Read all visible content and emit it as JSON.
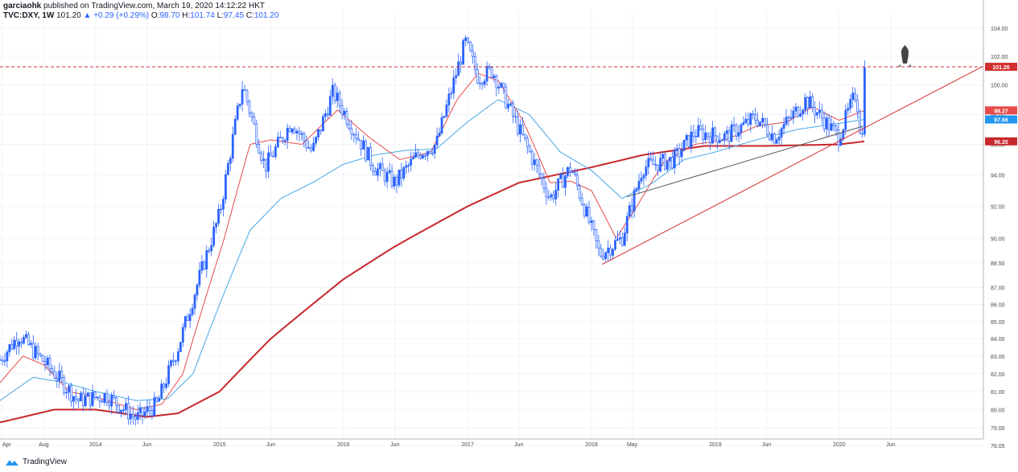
{
  "header": {
    "publisher": "garciaohk",
    "published_text": "published on TradingView.com, March 19, 2020 14:12:22 HKT",
    "symbol": "TVC:DXY, 1W",
    "last": "101.20",
    "change": "+0.29 (+0.29%)",
    "ohlc": {
      "O": "98.70",
      "H": "101.74",
      "L": "97.45",
      "C": "101.20"
    }
  },
  "footer": {
    "brand": "TradingView"
  },
  "icons": {
    "annotation": "rocket-icon",
    "brand": "tradingview-logo-icon",
    "change": "triangle-up-icon"
  },
  "colors": {
    "bull": "#2962ff",
    "bear": "#2962ff",
    "ma_fast": "#e84a4a",
    "ma_mid": "#45a7e6",
    "ma_slow": "#c7272b",
    "resistance_line": "#d32f2f",
    "axis_label_bg_price": "#d32f2f",
    "axis_label_bg_mid": "#2196f3"
  },
  "chart_data": {
    "type": "candlestick",
    "yscale": "log",
    "ylim": [
      78.4,
      105.2
    ],
    "y_ticks": [
      "104.00",
      "102.00",
      "100.00",
      "98.00",
      "96.00",
      "94.00",
      "92.00",
      "90.00",
      "88.50",
      "87.00",
      "86.00",
      "85.00",
      "84.00",
      "83.00",
      "82.00",
      "81.00",
      "80.00",
      "79.00",
      "78.05"
    ],
    "x_ticks": [
      "Apr",
      "Aug",
      "2014",
      "Jun",
      "2015",
      "Jun",
      "2016",
      "Jun",
      "2017",
      "Jun",
      "2018",
      "May",
      "2019",
      "Jun",
      "2020",
      "Jun"
    ],
    "x_tick_dates": [
      "2013-04-01",
      "2013-08-01",
      "2014-01-01",
      "2014-06-01",
      "2015-01-01",
      "2015-06-01",
      "2016-01-01",
      "2016-06-01",
      "2017-01-01",
      "2017-06-01",
      "2018-01-01",
      "2018-05-01",
      "2019-01-01",
      "2019-06-01",
      "2020-01-01",
      "2020-06-01"
    ],
    "x_range": [
      "2013-03-25",
      "2021-03-01"
    ],
    "price_labels": [
      {
        "value": 101.26,
        "text": "101.26",
        "color": "#d32f2f"
      },
      {
        "value": 98.27,
        "text": "98.27",
        "color": "#e84a4a"
      },
      {
        "value": 97.66,
        "text": "97.66",
        "color": "#2196f3"
      },
      {
        "value": 96.2,
        "text": "96.20",
        "color": "#c7272b"
      }
    ],
    "horizontal_line": {
      "value": 101.26,
      "style": "dashed"
    },
    "close_anchors": [
      {
        "date": "2013-03-25",
        "close": 82.8
      },
      {
        "date": "2013-05-20",
        "close": 84.2
      },
      {
        "date": "2013-09-02",
        "close": 82.0
      },
      {
        "date": "2013-11-10",
        "close": 80.5
      },
      {
        "date": "2014-02-01",
        "close": 80.8
      },
      {
        "date": "2014-05-01",
        "close": 79.5
      },
      {
        "date": "2014-07-01",
        "close": 80.3
      },
      {
        "date": "2014-09-01",
        "close": 83.5
      },
      {
        "date": "2014-11-01",
        "close": 87.5
      },
      {
        "date": "2015-01-01",
        "close": 91.5
      },
      {
        "date": "2015-03-10",
        "close": 100.0
      },
      {
        "date": "2015-05-15",
        "close": 94.5
      },
      {
        "date": "2015-08-01",
        "close": 97.5
      },
      {
        "date": "2015-10-01",
        "close": 95.5
      },
      {
        "date": "2015-12-01",
        "close": 99.5
      },
      {
        "date": "2016-04-01",
        "close": 94.5
      },
      {
        "date": "2016-06-01",
        "close": 93.5
      },
      {
        "date": "2016-08-15",
        "close": 95.5
      },
      {
        "date": "2016-10-01",
        "close": 96.0
      },
      {
        "date": "2016-12-25",
        "close": 103.0
      },
      {
        "date": "2017-02-01",
        "close": 100.5
      },
      {
        "date": "2017-03-15",
        "close": 101.0
      },
      {
        "date": "2017-06-01",
        "close": 97.0
      },
      {
        "date": "2017-09-01",
        "close": 92.5
      },
      {
        "date": "2017-11-01",
        "close": 94.5
      },
      {
        "date": "2018-01-25",
        "close": 89.0
      },
      {
        "date": "2018-04-01",
        "close": 90.0
      },
      {
        "date": "2018-06-01",
        "close": 94.5
      },
      {
        "date": "2018-09-01",
        "close": 95.0
      },
      {
        "date": "2018-11-01",
        "close": 96.8
      },
      {
        "date": "2019-02-01",
        "close": 96.5
      },
      {
        "date": "2019-05-01",
        "close": 97.8
      },
      {
        "date": "2019-06-25",
        "close": 96.5
      },
      {
        "date": "2019-09-25",
        "close": 99.0
      },
      {
        "date": "2019-12-30",
        "close": 96.5
      },
      {
        "date": "2020-02-20",
        "close": 99.5
      },
      {
        "date": "2020-03-08",
        "close": 95.9
      },
      {
        "date": "2020-03-16",
        "close": 101.2
      }
    ],
    "series": [
      {
        "name": "",
        "kind": "ma_fast",
        "anchors": [
          {
            "date": "2013-03-25",
            "v": 81.5
          },
          {
            "date": "2013-06-01",
            "v": 83.0
          },
          {
            "date": "2013-08-01",
            "v": 82.5
          },
          {
            "date": "2013-10-15",
            "v": 81.0
          },
          {
            "date": "2014-01-01",
            "v": 80.7
          },
          {
            "date": "2014-05-01",
            "v": 80.0
          },
          {
            "date": "2014-07-15",
            "v": 80.3
          },
          {
            "date": "2014-09-15",
            "v": 82.0
          },
          {
            "date": "2014-11-15",
            "v": 86.0
          },
          {
            "date": "2015-01-15",
            "v": 90.0
          },
          {
            "date": "2015-04-01",
            "v": 96.0
          },
          {
            "date": "2015-06-01",
            "v": 96.3
          },
          {
            "date": "2015-09-01",
            "v": 96.0
          },
          {
            "date": "2015-12-15",
            "v": 98.3
          },
          {
            "date": "2016-03-15",
            "v": 96.5
          },
          {
            "date": "2016-06-15",
            "v": 95.0
          },
          {
            "date": "2016-09-15",
            "v": 95.5
          },
          {
            "date": "2016-12-01",
            "v": 99.0
          },
          {
            "date": "2017-02-01",
            "v": 100.8
          },
          {
            "date": "2017-04-01",
            "v": 100.3
          },
          {
            "date": "2017-06-15",
            "v": 97.5
          },
          {
            "date": "2017-09-01",
            "v": 93.5
          },
          {
            "date": "2017-11-01",
            "v": 93.6
          },
          {
            "date": "2018-01-01",
            "v": 93.0
          },
          {
            "date": "2018-03-15",
            "v": 90.0
          },
          {
            "date": "2018-05-15",
            "v": 92.0
          },
          {
            "date": "2018-08-01",
            "v": 94.8
          },
          {
            "date": "2018-11-01",
            "v": 96.0
          },
          {
            "date": "2019-02-01",
            "v": 96.3
          },
          {
            "date": "2019-05-01",
            "v": 97.2
          },
          {
            "date": "2019-08-01",
            "v": 97.5
          },
          {
            "date": "2019-10-15",
            "v": 98.5
          },
          {
            "date": "2020-01-01",
            "v": 97.6
          },
          {
            "date": "2020-03-16",
            "v": 98.27
          }
        ]
      },
      {
        "name": "",
        "kind": "ma_mid",
        "anchors": [
          {
            "date": "2013-03-25",
            "v": 80.5
          },
          {
            "date": "2013-07-01",
            "v": 81.8
          },
          {
            "date": "2013-10-01",
            "v": 81.5
          },
          {
            "date": "2014-01-01",
            "v": 81.0
          },
          {
            "date": "2014-05-01",
            "v": 80.5
          },
          {
            "date": "2014-08-01",
            "v": 80.6
          },
          {
            "date": "2014-10-15",
            "v": 82.0
          },
          {
            "date": "2015-01-01",
            "v": 86.0
          },
          {
            "date": "2015-04-01",
            "v": 90.5
          },
          {
            "date": "2015-07-01",
            "v": 92.5
          },
          {
            "date": "2015-10-01",
            "v": 93.5
          },
          {
            "date": "2016-01-01",
            "v": 94.7
          },
          {
            "date": "2016-04-01",
            "v": 95.3
          },
          {
            "date": "2016-07-01",
            "v": 95.6
          },
          {
            "date": "2016-10-01",
            "v": 95.7
          },
          {
            "date": "2017-01-01",
            "v": 97.5
          },
          {
            "date": "2017-04-01",
            "v": 99.0
          },
          {
            "date": "2017-07-01",
            "v": 98.0
          },
          {
            "date": "2017-10-01",
            "v": 95.5
          },
          {
            "date": "2018-01-01",
            "v": 94.3
          },
          {
            "date": "2018-04-01",
            "v": 92.5
          },
          {
            "date": "2018-07-01",
            "v": 93.5
          },
          {
            "date": "2018-10-01",
            "v": 95.0
          },
          {
            "date": "2019-01-01",
            "v": 95.5
          },
          {
            "date": "2019-05-01",
            "v": 96.3
          },
          {
            "date": "2019-09-01",
            "v": 97.0
          },
          {
            "date": "2020-01-01",
            "v": 97.4
          },
          {
            "date": "2020-03-16",
            "v": 97.66
          }
        ]
      },
      {
        "name": "",
        "kind": "ma_slow",
        "anchors": [
          {
            "date": "2013-03-25",
            "v": 79.3
          },
          {
            "date": "2013-09-01",
            "v": 80.0
          },
          {
            "date": "2014-01-01",
            "v": 80.0
          },
          {
            "date": "2014-06-01",
            "v": 79.6
          },
          {
            "date": "2014-09-01",
            "v": 79.8
          },
          {
            "date": "2015-01-01",
            "v": 81.0
          },
          {
            "date": "2015-06-01",
            "v": 84.0
          },
          {
            "date": "2016-01-01",
            "v": 87.5
          },
          {
            "date": "2016-06-01",
            "v": 89.5
          },
          {
            "date": "2017-01-01",
            "v": 92.0
          },
          {
            "date": "2017-06-01",
            "v": 93.5
          },
          {
            "date": "2018-01-01",
            "v": 94.5
          },
          {
            "date": "2018-06-01",
            "v": 95.3
          },
          {
            "date": "2018-12-01",
            "v": 95.9
          },
          {
            "date": "2019-06-01",
            "v": 95.9
          },
          {
            "date": "2020-01-01",
            "v": 96.0
          },
          {
            "date": "2020-03-16",
            "v": 96.2
          }
        ]
      }
    ],
    "trendlines": [
      {
        "from": {
          "date": "2018-02-01",
          "v": 88.4
        },
        "to": {
          "date": "2021-02-25",
          "v": 101.26
        },
        "color": "#d32f2f"
      },
      {
        "from": {
          "date": "2018-04-15",
          "v": 92.6
        },
        "to": {
          "date": "2020-03-10",
          "v": 97.2
        },
        "color": "#555555"
      }
    ]
  }
}
